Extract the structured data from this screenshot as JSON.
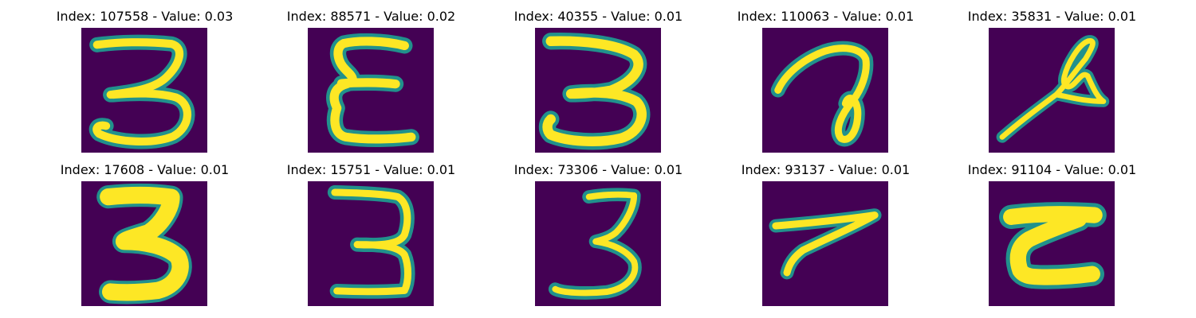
{
  "colors": {
    "background": "#440154",
    "stroke_core": "#fde725",
    "stroke_mid": "#5ec962",
    "stroke_edge": "#21918c"
  },
  "panels": [
    {
      "title": "Index: 107558 - Value: 0.03"
    },
    {
      "title": "Index: 88571 - Value: 0.02"
    },
    {
      "title": "Index: 40355 - Value: 0.01"
    },
    {
      "title": "Index: 110063 - Value: 0.01"
    },
    {
      "title": "Index: 35831 - Value: 0.01"
    },
    {
      "title": "Index: 17608 - Value: 0.01"
    },
    {
      "title": "Index: 15751 - Value: 0.01"
    },
    {
      "title": "Index: 73306 - Value: 0.01"
    },
    {
      "title": "Index: 93137 - Value: 0.01"
    },
    {
      "title": "Index: 91104 - Value: 0.01"
    }
  ]
}
